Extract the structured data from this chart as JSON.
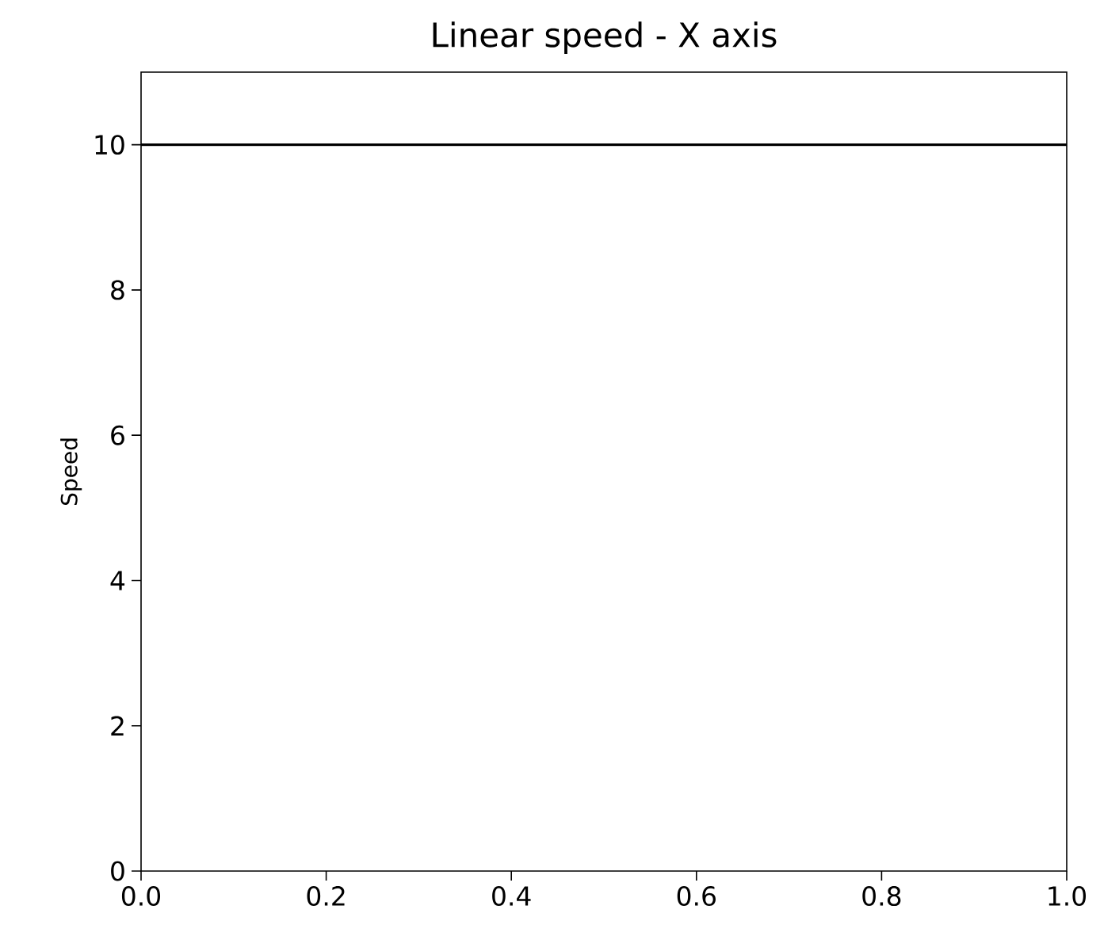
{
  "chart_data": {
    "type": "line",
    "title": "Linear speed - X axis",
    "ylabel": "Speed",
    "x": [
      0,
      1
    ],
    "series": [
      {
        "color": "#000000",
        "values": [
          10,
          10
        ]
      }
    ],
    "marker": "none",
    "line_style": "solid",
    "grid": false,
    "xlim": [
      0,
      1
    ],
    "ylim": [
      0,
      11
    ],
    "xticks": [
      {
        "value": 0,
        "label": "0.0"
      },
      {
        "value": 0.2,
        "label": "0.2"
      },
      {
        "value": 0.4,
        "label": "0.4"
      },
      {
        "value": 0.6,
        "label": "0.6"
      },
      {
        "value": 0.8,
        "label": "0.8"
      },
      {
        "value": 1,
        "label": "1.0"
      }
    ],
    "yticks": [
      0,
      2,
      4,
      6,
      8,
      10
    ]
  }
}
